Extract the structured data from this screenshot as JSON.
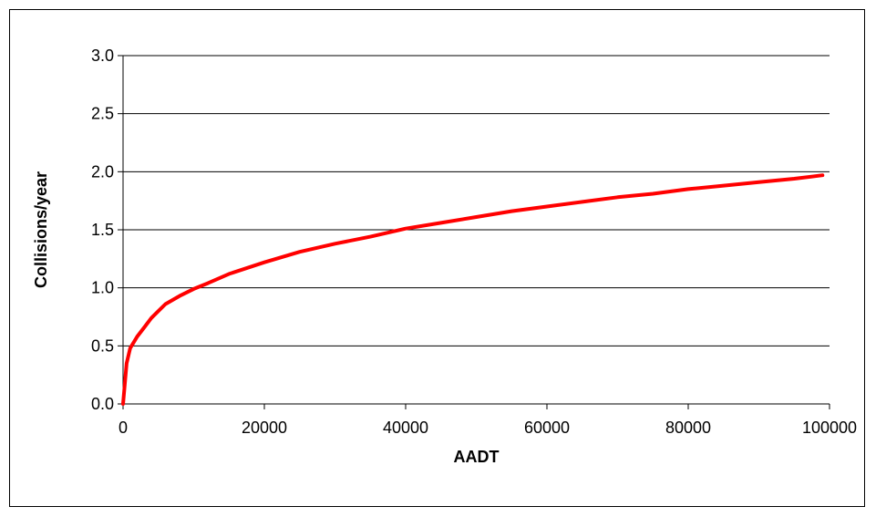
{
  "chart_data": {
    "type": "line",
    "title": "",
    "xlabel": "AADT",
    "ylabel": "Collisions/year",
    "xlim": [
      0,
      100000
    ],
    "ylim": [
      0,
      3.0
    ],
    "x_ticks": [
      "0",
      "20000",
      "40000",
      "60000",
      "80000",
      "100000"
    ],
    "y_ticks": [
      "0.0",
      "0.5",
      "1.0",
      "1.5",
      "2.0",
      "2.5",
      "3.0"
    ],
    "grid": "horizontal",
    "legend": "none",
    "series": [
      {
        "color": "#ff0000",
        "x": [
          0,
          500,
          1000,
          2000,
          3000,
          4000,
          5000,
          6000,
          8000,
          10000,
          12000,
          15000,
          20000,
          25000,
          30000,
          35000,
          40000,
          45000,
          50000,
          55000,
          60000,
          65000,
          70000,
          75000,
          80000,
          85000,
          90000,
          95000,
          99000
        ],
        "y": [
          0.0,
          0.35,
          0.48,
          0.58,
          0.66,
          0.74,
          0.8,
          0.86,
          0.93,
          0.99,
          1.04,
          1.12,
          1.22,
          1.31,
          1.38,
          1.44,
          1.51,
          1.56,
          1.61,
          1.66,
          1.7,
          1.74,
          1.78,
          1.81,
          1.85,
          1.88,
          1.91,
          1.94,
          1.97
        ]
      }
    ]
  }
}
